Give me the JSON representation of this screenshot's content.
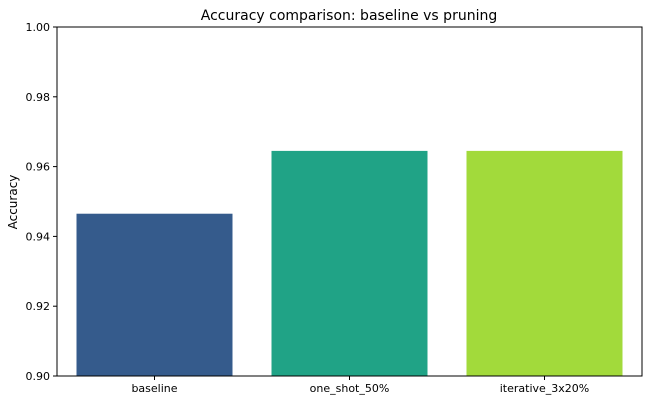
{
  "chart_data": {
    "type": "bar",
    "title": "Accuracy comparison: baseline vs pruning",
    "xlabel": "",
    "ylabel": "Accuracy",
    "categories": [
      "baseline",
      "one_shot_50%",
      "iterative_3x20%"
    ],
    "values": [
      0.9465,
      0.9645,
      0.9645
    ],
    "colors": [
      "#355b8c",
      "#20a386",
      "#a2da3b"
    ],
    "ylim": [
      0.9,
      1.0
    ],
    "yticks": [
      0.9,
      0.92,
      0.94,
      0.96,
      0.98,
      1.0
    ],
    "ytick_labels": [
      "0.90",
      "0.92",
      "0.94",
      "0.96",
      "0.98",
      "1.00"
    ],
    "grid": false,
    "legend": "none"
  }
}
